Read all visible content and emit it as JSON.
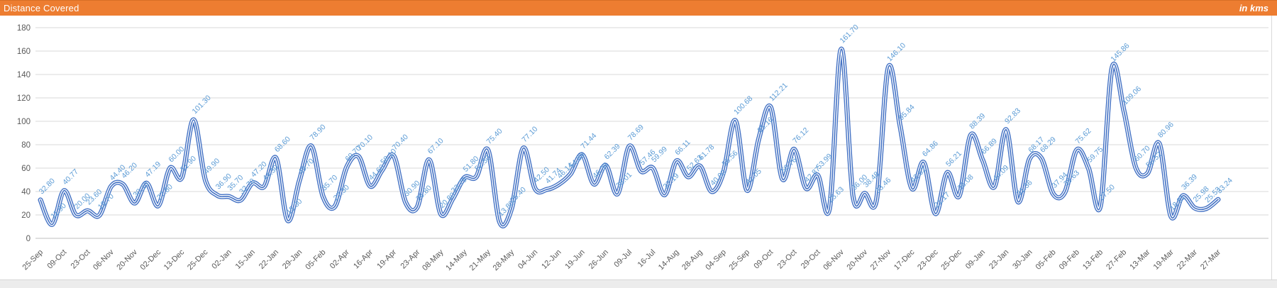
{
  "header": {
    "title": "Distance Covered",
    "unit_label": "in kms",
    "bg_color": "#ED7D31",
    "text_color": "#FFFFFF"
  },
  "chart_data": {
    "type": "line",
    "title": "Distance Covered",
    "subtitle": "in kms",
    "smooth": true,
    "grid": true,
    "legend": false,
    "show_point_labels": true,
    "ylim": [
      0,
      180
    ],
    "ytick_step": 20,
    "x_label_step": 2,
    "line_color": "#4472C4",
    "line_inner_color": "#FFFFFF",
    "point_label_color": "#5B9BD5",
    "axis_text_color": "#595959",
    "gridline_color": "#D9D9D9",
    "axis_line_color": "#BFBFBF",
    "x_labels": [
      "25-Sep",
      "09-Oct",
      "23-Oct",
      "06-Nov",
      "20-Nov",
      "02-Dec",
      "13-Dec",
      "25-Dec",
      "02-Jan",
      "15-Jan",
      "22-Jan",
      "29-Jan",
      "05-Feb",
      "02-Apr",
      "16-Apr",
      "19-Apr",
      "23-Apr",
      "08-May",
      "14-May",
      "21-May",
      "28-May",
      "04-Jun",
      "12-Jun",
      "19-Jun",
      "26-Jun",
      "09-Jul",
      "16-Jul",
      "14-Aug",
      "28-Aug",
      "04-Sep",
      "25-Sep",
      "09-Oct",
      "23-Oct",
      "29-Oct",
      "06-Nov",
      "20-Nov",
      "27-Nov",
      "17-Dec",
      "23-Dec",
      "25-Dec",
      "09-Jan",
      "23-Jan",
      "30-Jan",
      "05-Feb",
      "09-Feb",
      "13-Feb",
      "27-Feb",
      "13-Mar",
      "19-Mar",
      "22-Mar",
      "27-Mar"
    ],
    "values": [
      32.8,
      11.9,
      40.77,
      20.0,
      23.6,
      19.7,
      44.4,
      46.2,
      30.1,
      47.19,
      27.8,
      60.0,
      51.9,
      101.3,
      49.9,
      36.9,
      35.7,
      32.7,
      47.2,
      44.3,
      68.6,
      15.3,
      49.7,
      78.9,
      35.7,
      27.3,
      60.7,
      70.1,
      44.6,
      58.1,
      70.4,
      30.9,
      26.8,
      67.1,
      20.8,
      33.79,
      51.8,
      52.5,
      75.4,
      13.8,
      25.4,
      77.1,
      42.5,
      41.74,
      46.14,
      54.89,
      71.44,
      46.36,
      62.39,
      38.01,
      78.69,
      57.46,
      59.99,
      37.19,
      66.11,
      52.63,
      61.78,
      40.0,
      56.56,
      100.68,
      41.05,
      85.16,
      112.21,
      50.76,
      76.12,
      42.87,
      53.99,
      25.63,
      161.7,
      36.0,
      38.48,
      33.46,
      146.1,
      95.84,
      42.62,
      64.86,
      21.17,
      56.21,
      36.08,
      88.39,
      66.89,
      44.09,
      92.83,
      31.36,
      68.17,
      68.29,
      37.94,
      39.63,
      75.62,
      59.75,
      27.5,
      145.86,
      109.06,
      60.7,
      55.52,
      80.96,
      18.81,
      36.39,
      25.98,
      25.53,
      33.24
    ]
  }
}
